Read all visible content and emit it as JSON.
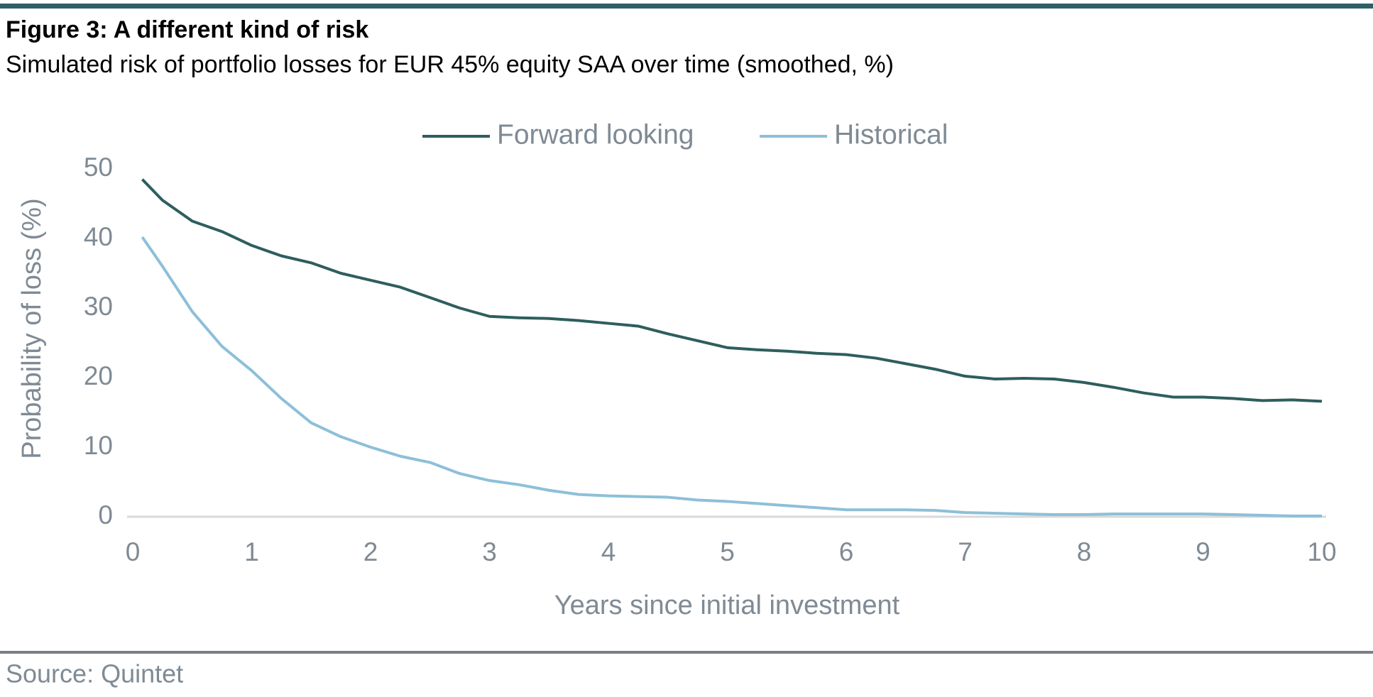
{
  "chart_data": {
    "type": "line",
    "title": "Figure 3: A different kind of risk",
    "subtitle": "Simulated risk of portfolio losses for EUR 45% equity SAA over time (smoothed, %)",
    "x_label": "Years since initial investment",
    "y_label": "Probability of loss (%)",
    "source": "Source: Quintet",
    "x": [
      0.08,
      0.25,
      0.5,
      0.75,
      1,
      1.25,
      1.5,
      1.75,
      2,
      2.25,
      2.5,
      2.75,
      3,
      3.25,
      3.5,
      3.75,
      4,
      4.25,
      4.5,
      4.75,
      5,
      5.25,
      5.5,
      5.75,
      6,
      6.25,
      6.5,
      6.75,
      7,
      7.25,
      7.5,
      7.75,
      8,
      8.25,
      8.5,
      8.75,
      9,
      9.25,
      9.5,
      9.75,
      10
    ],
    "series": [
      {
        "name": "Forward looking",
        "color": "#2e5e5e",
        "values": [
          48.5,
          45.5,
          42.5,
          41,
          39,
          37.5,
          36.5,
          35,
          34,
          33,
          31.5,
          30,
          28.8,
          28.6,
          28.5,
          28.2,
          27.8,
          27.4,
          26.3,
          25.3,
          24.3,
          24,
          23.8,
          23.5,
          23.3,
          22.8,
          22,
          21.2,
          20.2,
          19.8,
          19.9,
          19.8,
          19.3,
          18.6,
          17.8,
          17.2,
          17.2,
          17,
          16.7,
          16.8,
          16.6
        ]
      },
      {
        "name": "Historical",
        "color": "#8dbfd9",
        "values": [
          40.2,
          36,
          29.5,
          24.5,
          21,
          17,
          13.5,
          11.5,
          10,
          8.7,
          7.8,
          6.2,
          5.2,
          4.6,
          3.8,
          3.2,
          3,
          2.9,
          2.8,
          2.4,
          2.2,
          1.9,
          1.6,
          1.3,
          1.0,
          1.0,
          1.0,
          0.9,
          0.6,
          0.5,
          0.4,
          0.3,
          0.3,
          0.4,
          0.4,
          0.4,
          0.4,
          0.3,
          0.2,
          0.1,
          0.1
        ]
      }
    ],
    "xlim": [
      0,
      10
    ],
    "xticks": [
      0,
      1,
      2,
      3,
      4,
      5,
      6,
      7,
      8,
      9,
      10
    ],
    "ylim": [
      0,
      50
    ],
    "yticks": [
      0,
      10,
      20,
      30,
      40,
      50
    ],
    "grid": false,
    "legend": "top"
  }
}
